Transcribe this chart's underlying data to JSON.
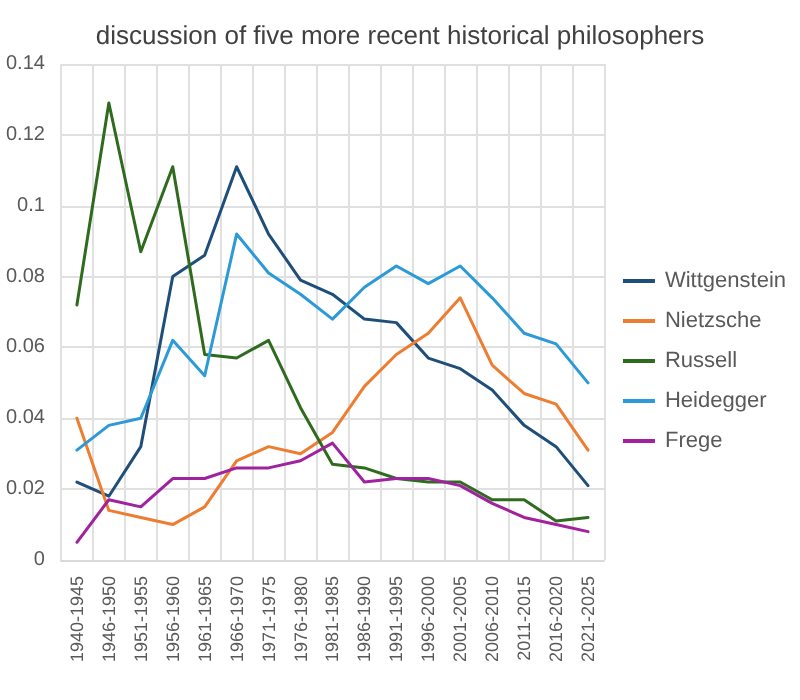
{
  "chart_data": {
    "type": "line",
    "title": "discussion of five more recent historical philosophers",
    "categories": [
      "1940-1945",
      "1946-1950",
      "1951-1955",
      "1956-1960",
      "1961-1965",
      "1966-1970",
      "1971-1975",
      "1976-1980",
      "1981-1985",
      "1986-1990",
      "1991-1995",
      "1996-2000",
      "2001-2005",
      "2006-2010",
      "2011-2015",
      "2016-2020",
      "2021-2025"
    ],
    "series": [
      {
        "name": "Wittgenstein",
        "color": "#1f4e79",
        "values": [
          0.022,
          0.018,
          0.032,
          0.08,
          0.086,
          0.111,
          0.092,
          0.079,
          0.075,
          0.068,
          0.067,
          0.057,
          0.054,
          0.048,
          0.038,
          0.032,
          0.021
        ]
      },
      {
        "name": "Nietzsche",
        "color": "#ed7d31",
        "values": [
          0.04,
          0.014,
          0.012,
          0.01,
          0.015,
          0.028,
          0.032,
          0.03,
          0.036,
          0.049,
          0.058,
          0.064,
          0.074,
          0.055,
          0.047,
          0.044,
          0.031
        ]
      },
      {
        "name": "Russell",
        "color": "#2f6b1e",
        "values": [
          0.072,
          0.129,
          0.087,
          0.111,
          0.058,
          0.057,
          0.062,
          0.043,
          0.027,
          0.026,
          0.023,
          0.022,
          0.022,
          0.017,
          0.017,
          0.011,
          0.012
        ]
      },
      {
        "name": "Heidegger",
        "color": "#2b9ad6",
        "values": [
          0.031,
          0.038,
          0.04,
          0.062,
          0.052,
          0.092,
          0.081,
          0.075,
          0.068,
          0.077,
          0.083,
          0.078,
          0.083,
          0.074,
          0.064,
          0.061,
          0.05
        ]
      },
      {
        "name": "Frege",
        "color": "#a0229e",
        "values": [
          0.005,
          0.017,
          0.015,
          0.023,
          0.023,
          0.026,
          0.026,
          0.028,
          0.033,
          0.022,
          0.023,
          0.023,
          0.021,
          0.016,
          0.012,
          0.01,
          0.008
        ]
      }
    ],
    "ylim": [
      0,
      0.14
    ],
    "yticks": [
      0,
      0.02,
      0.04,
      0.06,
      0.08,
      0.1,
      0.12,
      0.14
    ],
    "grid": true,
    "legend": "right",
    "marker": "none",
    "line_style": "solid"
  }
}
